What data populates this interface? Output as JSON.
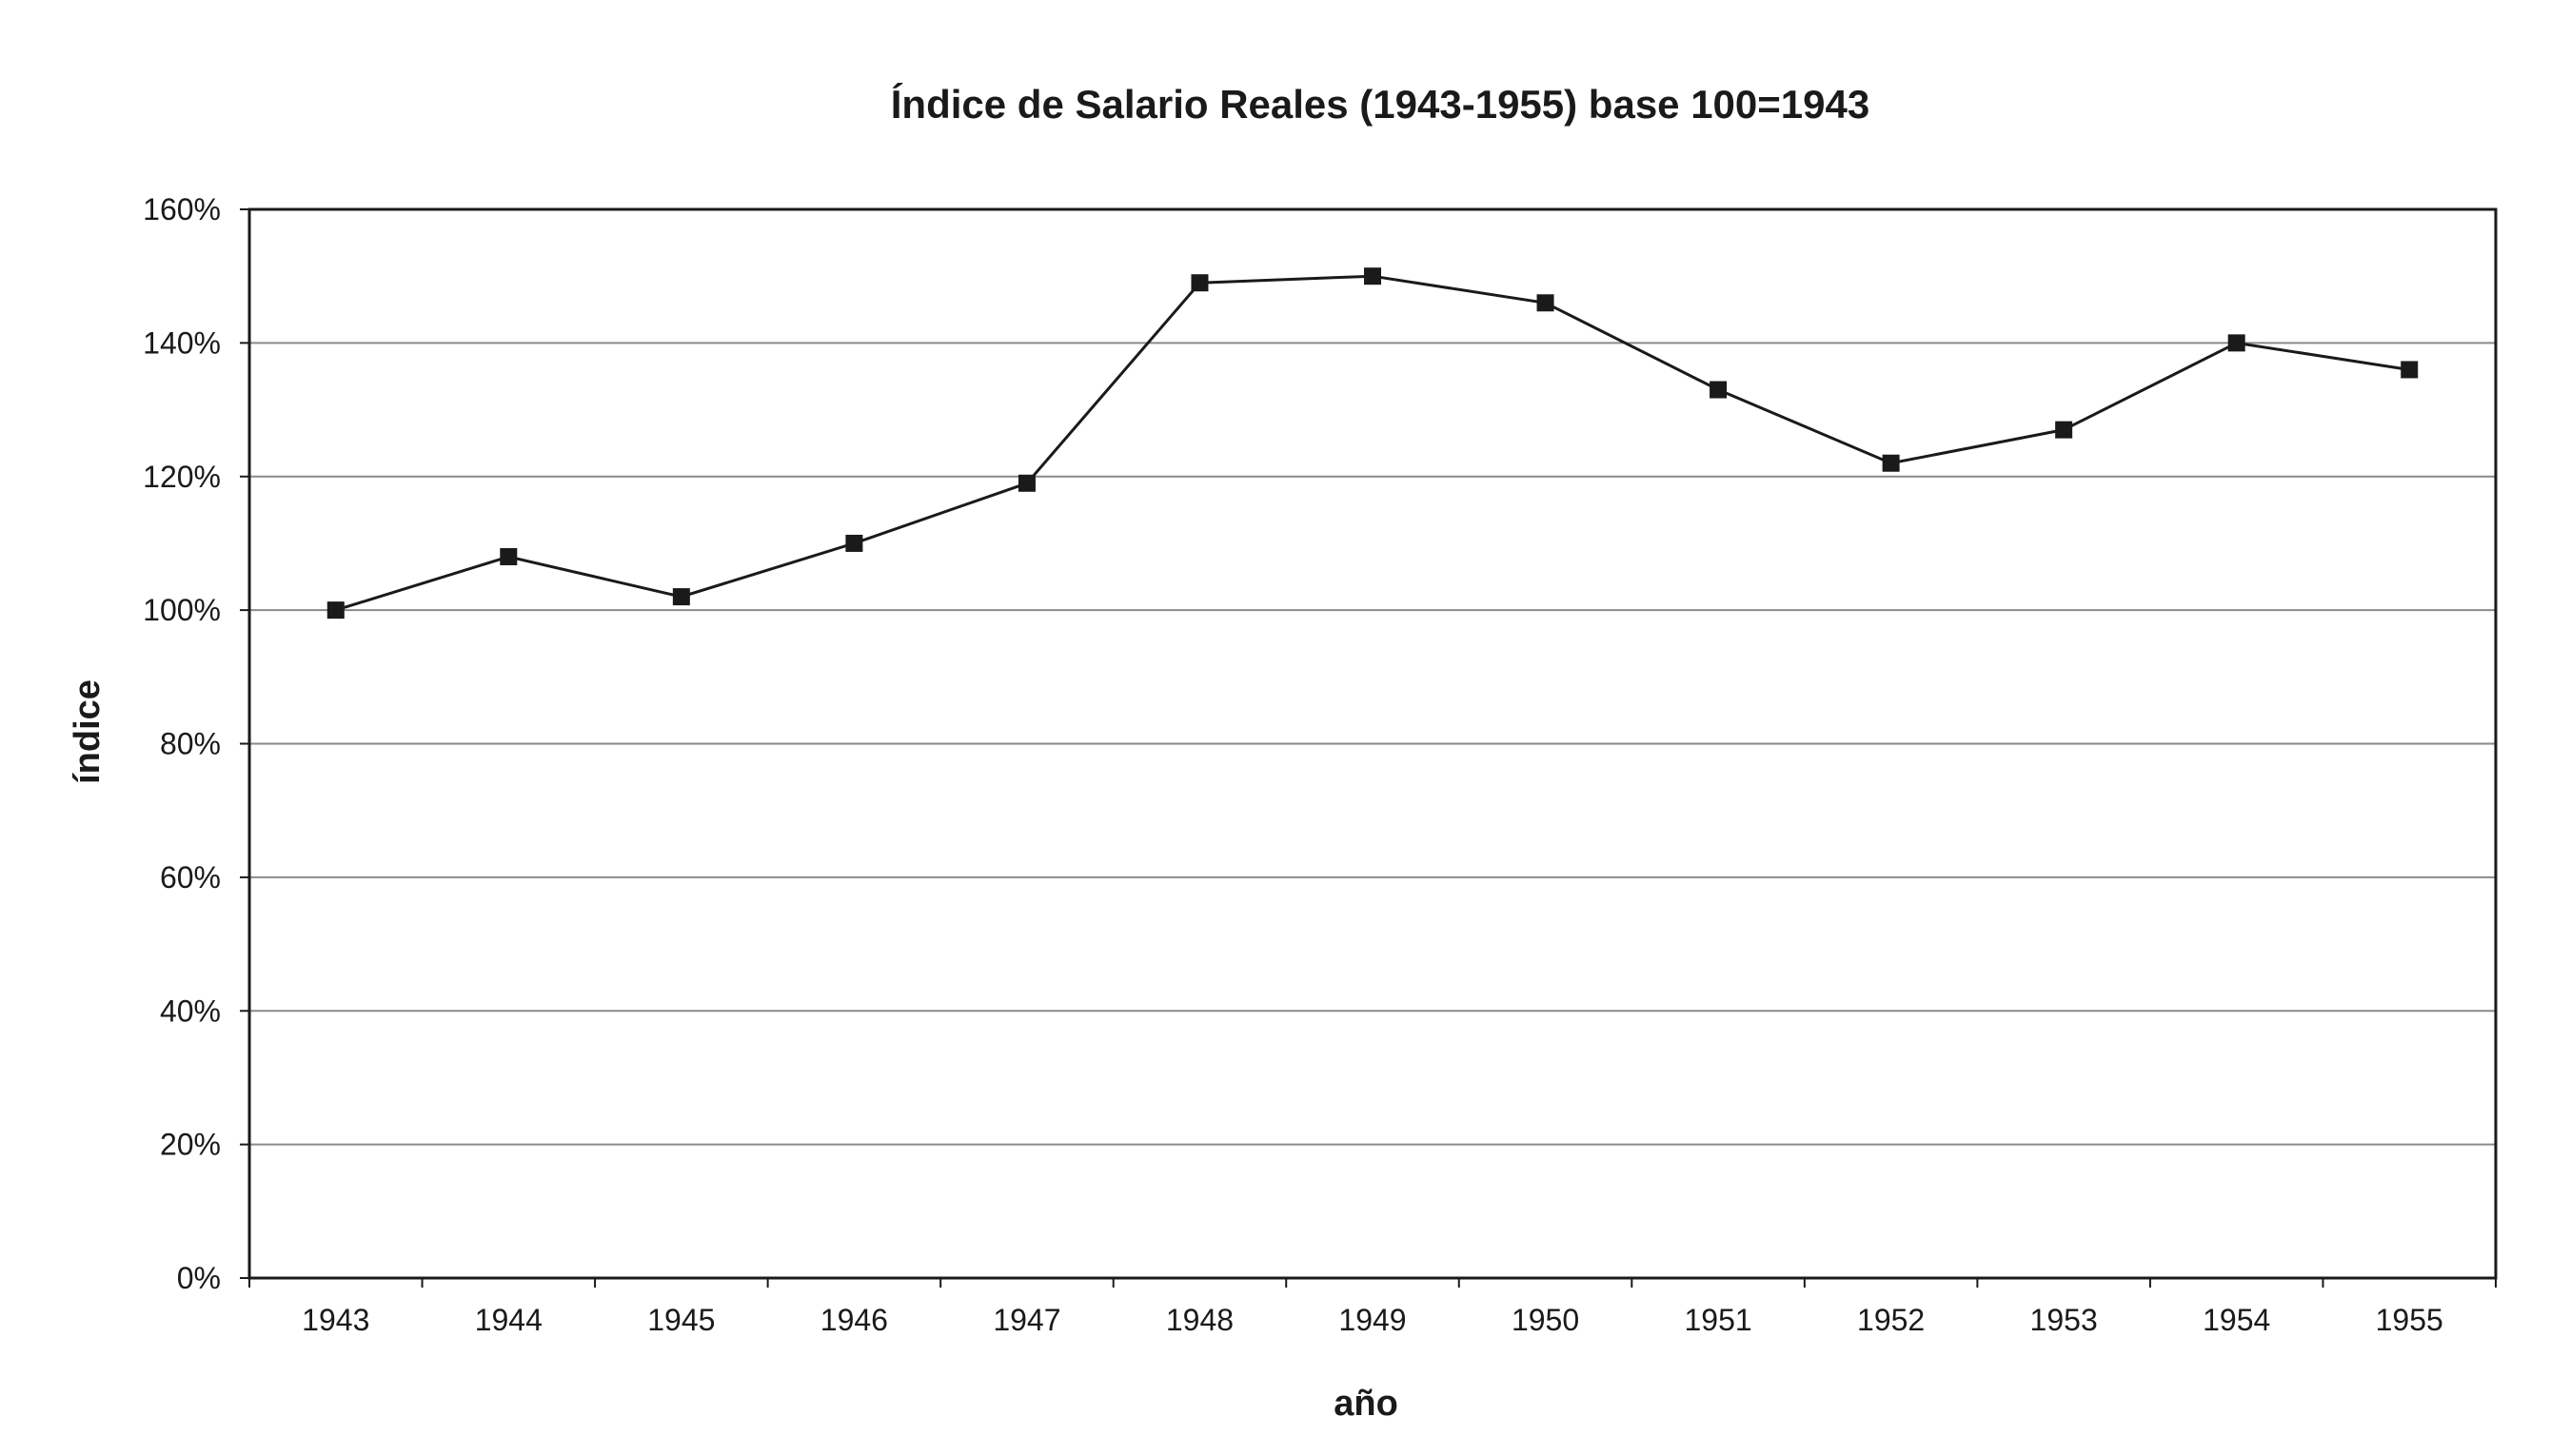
{
  "chart_data": {
    "type": "line",
    "title": "Índice de Salario Reales (1943-1955) base 100=1943",
    "xlabel": "año",
    "ylabel": "índice",
    "categories": [
      "1943",
      "1944",
      "1945",
      "1946",
      "1947",
      "1948",
      "1949",
      "1950",
      "1951",
      "1952",
      "1953",
      "1954",
      "1955"
    ],
    "series": [
      {
        "values": [
          100,
          108,
          102,
          110,
          119,
          149,
          150,
          146,
          133,
          122,
          127,
          140,
          136
        ]
      }
    ],
    "ylim": [
      0,
      160
    ],
    "yticks": [
      0,
      20,
      40,
      60,
      80,
      100,
      120,
      140,
      160
    ],
    "ytick_format": "percent",
    "grid": "horizontal",
    "legend": "none",
    "marker": "square",
    "line_color": "#1a1a1a",
    "grid_color": "#8a8a8a"
  }
}
